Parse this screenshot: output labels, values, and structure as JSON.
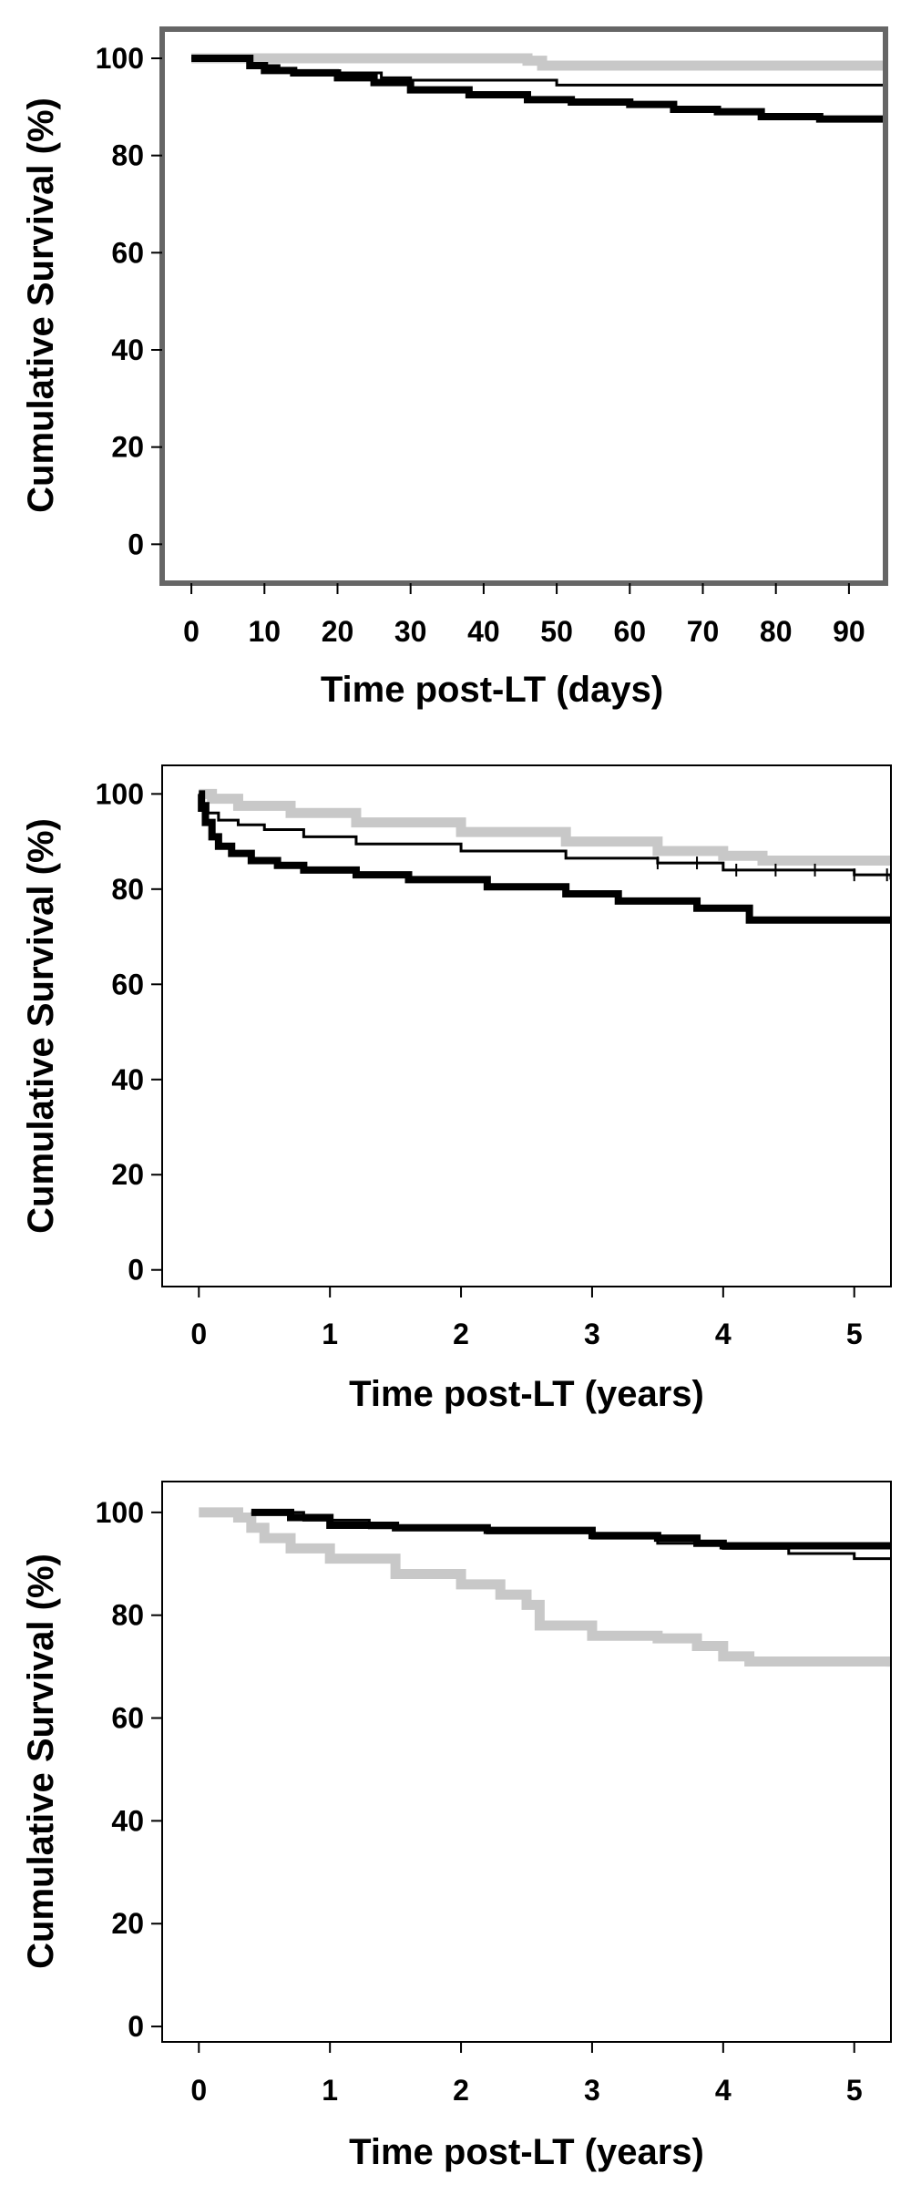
{
  "chart_data": [
    {
      "type": "line",
      "title": "",
      "xlabel": "Time post-LT (days)",
      "ylabel": "Cumulative Survival (%)",
      "xlim": [
        -4,
        95
      ],
      "ylim": [
        -8,
        106
      ],
      "xticks": [
        0,
        10,
        20,
        30,
        40,
        50,
        60,
        70,
        80,
        90
      ],
      "yticks": [
        0,
        20,
        40,
        60,
        80,
        100
      ],
      "grid": false,
      "frame_color": "#666666",
      "series": [
        {
          "color": "#c8c8c8",
          "stroke": 11,
          "x": [
            0,
            28,
            46,
            48,
            95
          ],
          "y": [
            100,
            100,
            99.5,
            98.5,
            98.5
          ]
        },
        {
          "color": "#000000",
          "stroke": 3,
          "x": [
            0,
            8,
            12,
            20,
            26,
            30,
            50,
            95
          ],
          "y": [
            100,
            98.5,
            97.5,
            97,
            96,
            95.5,
            94.5,
            94.5
          ]
        },
        {
          "color": "#000000",
          "stroke": 8,
          "x": [
            0,
            8,
            10,
            14,
            20,
            25,
            30,
            38,
            46,
            52,
            60,
            66,
            72,
            78,
            86,
            95
          ],
          "y": [
            100,
            98.5,
            97.5,
            97,
            96,
            95,
            93.5,
            92.5,
            91.5,
            91,
            90.5,
            89.5,
            89,
            88,
            87.5,
            87.5
          ]
        }
      ]
    },
    {
      "type": "line",
      "title": "",
      "xlabel": "Time post-LT (years)",
      "ylabel": "Cumulative Survival (%)",
      "xlim": [
        -0.28,
        5.28
      ],
      "ylim": [
        -3.5,
        106
      ],
      "xticks": [
        0,
        1,
        2,
        3,
        4,
        5
      ],
      "yticks": [
        0,
        20,
        40,
        60,
        80,
        100
      ],
      "grid": false,
      "frame_color": "#000000",
      "series": [
        {
          "color": "#c8c8c8",
          "stroke": 11,
          "x": [
            0,
            0.1,
            0.3,
            0.7,
            1.2,
            2,
            2.8,
            3.5,
            4,
            4.3,
            5.28
          ],
          "y": [
            100,
            99,
            97.5,
            96,
            94,
            92,
            90,
            88,
            87,
            86,
            86
          ]
        },
        {
          "color": "#000000",
          "stroke": 3,
          "x": [
            0,
            0.03,
            0.07,
            0.15,
            0.3,
            0.5,
            0.8,
            1.2,
            2,
            2.8,
            3.5,
            4,
            5,
            5.28
          ],
          "y": [
            100,
            98,
            96,
            94.5,
            93.5,
            92.5,
            91,
            89.5,
            88,
            86.5,
            85.5,
            84,
            83,
            82
          ]
        },
        {
          "color": "#000000",
          "stroke": 8,
          "x": [
            0,
            0.02,
            0.05,
            0.1,
            0.15,
            0.25,
            0.4,
            0.6,
            0.8,
            1.2,
            1.6,
            2.2,
            2.8,
            3.2,
            3.8,
            4.2,
            5.28
          ],
          "y": [
            100,
            97,
            94,
            91,
            89,
            87.5,
            86,
            85,
            84,
            83,
            82,
            80.5,
            79,
            77.5,
            76,
            73.5,
            73.5
          ]
        }
      ]
    },
    {
      "type": "line",
      "title": "",
      "xlabel": "Time post-LT (years)",
      "ylabel": "Cumulative Survival (%)",
      "xlim": [
        -0.28,
        5.28
      ],
      "ylim": [
        -3,
        106
      ],
      "xticks": [
        0,
        1,
        2,
        3,
        4,
        5
      ],
      "yticks": [
        0,
        20,
        40,
        60,
        80,
        100
      ],
      "grid": false,
      "frame_color": "#000000",
      "series": [
        {
          "color": "#c8c8c8",
          "stroke": 11,
          "x": [
            0,
            0.3,
            0.4,
            0.5,
            0.7,
            1,
            1.5,
            2,
            2.3,
            2.5,
            2.6,
            3,
            3.5,
            3.8,
            4,
            4.2,
            5.28
          ],
          "y": [
            100,
            99,
            97,
            95,
            93,
            91,
            88,
            86,
            84,
            82,
            78,
            76,
            75.5,
            74,
            72,
            71,
            70
          ]
        },
        {
          "color": "#000000",
          "stroke": 3,
          "x": [
            0.4,
            0.8,
            1.3,
            2.2,
            3,
            3.5,
            4,
            4.5,
            5,
            5.28
          ],
          "y": [
            100,
            98.5,
            97,
            96,
            95,
            94,
            93,
            92,
            91,
            91
          ]
        },
        {
          "color": "#000000",
          "stroke": 8,
          "x": [
            0.4,
            0.7,
            1,
            1.5,
            2.2,
            3,
            3.5,
            3.8,
            4,
            5.28
          ],
          "y": [
            100,
            99,
            97.5,
            97,
            96.5,
            95.5,
            95,
            94,
            93.5,
            93.5
          ]
        }
      ]
    }
  ]
}
